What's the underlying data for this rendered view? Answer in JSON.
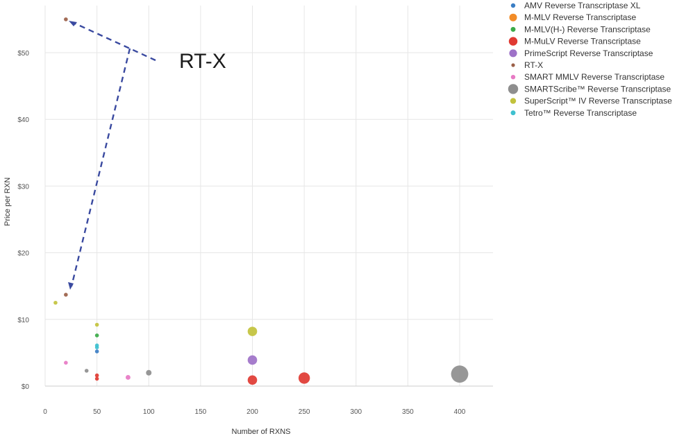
{
  "chart_data": {
    "type": "scatter",
    "title": "",
    "xlabel": "Number of  RXNS",
    "ylabel": "Price per RXN",
    "xlim": [
      0,
      430
    ],
    "ylim": [
      -1,
      57
    ],
    "x_ticks": [
      0,
      50,
      100,
      150,
      200,
      250,
      300,
      350,
      400
    ],
    "y_ticks": [
      0,
      10,
      20,
      30,
      40,
      50
    ],
    "y_tick_prefix": "$",
    "grid": true,
    "legend_position": "right",
    "series": [
      {
        "name": "AMV Reverse Transcriptase XL",
        "color": "#3b7ec4",
        "points": [
          {
            "x": 50,
            "y": 5.2
          }
        ]
      },
      {
        "name": "M-MLV Reverse Transcriptase",
        "color": "#f28c28",
        "points": []
      },
      {
        "name": "M-MLV(H-) Reverse Transcriptase",
        "color": "#3aaa48",
        "points": [
          {
            "x": 50,
            "y": 7.6
          }
        ]
      },
      {
        "name": "M-MuLV Reverse Transcriptase",
        "color": "#e03a32",
        "points": [
          {
            "x": 50,
            "y": 1.6
          },
          {
            "x": 50,
            "y": 1.1
          },
          {
            "x": 200,
            "y": 0.9
          },
          {
            "x": 250,
            "y": 1.2
          }
        ]
      },
      {
        "name": "PrimeScript Reverse Transcriptase",
        "color": "#9e72c8",
        "points": [
          {
            "x": 200,
            "y": 3.9
          }
        ]
      },
      {
        "name": "RT-X",
        "color": "#9b6048",
        "points": [
          {
            "x": 20,
            "y": 55
          },
          {
            "x": 20,
            "y": 13.7
          }
        ]
      },
      {
        "name": "SMART MMLV Reverse Transcriptase",
        "color": "#e77ac4",
        "points": [
          {
            "x": 20,
            "y": 3.5
          },
          {
            "x": 80,
            "y": 1.3
          }
        ]
      },
      {
        "name": "SMARTScribe™ Reverse Transcriptase",
        "color": "#8e8e8e",
        "points": [
          {
            "x": 40,
            "y": 2.3
          },
          {
            "x": 100,
            "y": 2.0
          },
          {
            "x": 400,
            "y": 1.8
          }
        ]
      },
      {
        "name": "SuperScript™ IV Reverse Transcriptase",
        "color": "#c2c23c",
        "points": [
          {
            "x": 10,
            "y": 12.5
          },
          {
            "x": 50,
            "y": 9.2
          },
          {
            "x": 200,
            "y": 8.2
          }
        ]
      },
      {
        "name": "Tetro™ Reverse Transcriptase",
        "color": "#3ec0cf",
        "points": [
          {
            "x": 50,
            "y": 6.1
          },
          {
            "x": 50,
            "y": 5.8
          }
        ]
      }
    ],
    "annotations": [
      {
        "text": "RT-X",
        "points_to": [
          {
            "x": 20,
            "y": 55
          },
          {
            "x": 20,
            "y": 13.7
          }
        ]
      }
    ]
  }
}
